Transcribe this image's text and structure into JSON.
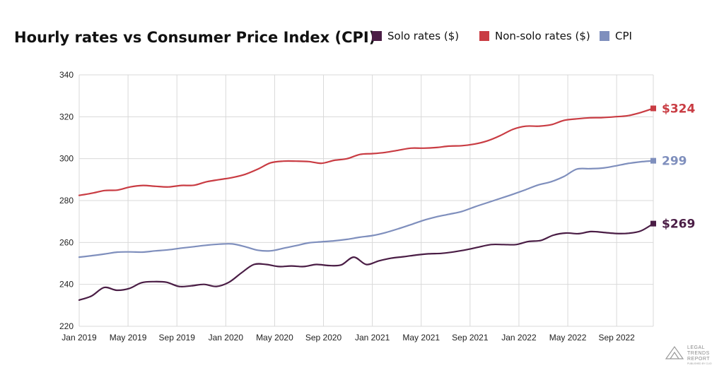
{
  "chart_data": {
    "type": "line",
    "title": "Hourly rates vs Consumer Price Index (CPI)",
    "xlabel": "",
    "ylabel": "",
    "ylim": [
      220,
      340
    ],
    "yticks": [
      220,
      240,
      260,
      280,
      300,
      320,
      340
    ],
    "x_tick_labels": [
      "Jan 2019",
      "May 2019",
      "Sep 2019",
      "Jan 2020",
      "May 2020",
      "Sep 2020",
      "Jan 2021",
      "May 2021",
      "Sep 2021",
      "Jan 2022",
      "May 2022",
      "Sep 2022"
    ],
    "months": 48,
    "grid": true,
    "legend_position": "top-right",
    "series": [
      {
        "name": "Solo rates ($)",
        "color": "#4a1d45",
        "end_label": "$269",
        "values": [
          232.5,
          234.5,
          238.5,
          237.2,
          238.0,
          240.8,
          241.3,
          241.0,
          239.0,
          239.3,
          240.0,
          239.0,
          241.0,
          245.5,
          249.5,
          249.5,
          248.5,
          248.8,
          248.5,
          249.5,
          249.0,
          249.3,
          253.0,
          249.5,
          251.2,
          252.5,
          253.2,
          254.0,
          254.6,
          254.8,
          255.5,
          256.5,
          257.8,
          259.0,
          259.0,
          259.0,
          260.5,
          261.0,
          263.5,
          264.5,
          264.2,
          265.2,
          264.8,
          264.3,
          264.4,
          265.5,
          269.0
        ]
      },
      {
        "name": "Non-solo rates ($)",
        "color": "#c93c43",
        "end_label": "$324",
        "values": [
          282.5,
          283.5,
          284.8,
          285.0,
          286.5,
          287.2,
          286.8,
          286.5,
          287.2,
          287.3,
          289.0,
          290.0,
          291.0,
          292.5,
          295.0,
          298.0,
          298.8,
          298.8,
          298.6,
          297.8,
          299.2,
          300.0,
          302.0,
          302.4,
          303.0,
          304.0,
          305.0,
          305.0,
          305.3,
          306.0,
          306.2,
          307.0,
          308.5,
          311.0,
          314.0,
          315.5,
          315.5,
          316.2,
          318.3,
          319.0,
          319.5,
          319.6,
          320.0,
          320.5,
          322.0,
          324.0
        ]
      },
      {
        "name": "CPI",
        "color": "#7f8fbd",
        "end_label": "299",
        "values": [
          253.0,
          253.7,
          254.5,
          255.4,
          255.5,
          255.4,
          256.0,
          256.5,
          257.3,
          258.0,
          258.7,
          259.2,
          259.3,
          258.0,
          256.3,
          256.0,
          257.2,
          258.5,
          259.8,
          260.3,
          260.8,
          261.5,
          262.5,
          263.3,
          264.7,
          266.5,
          268.5,
          270.6,
          272.2,
          273.5,
          274.8,
          277.0,
          279.0,
          281.0,
          283.0,
          285.2,
          287.5,
          289.0,
          291.5,
          295.0,
          295.2,
          295.5,
          296.5,
          297.7,
          298.5,
          299.0
        ]
      }
    ]
  },
  "branding": {
    "logo_line1": "LEGAL",
    "logo_line2": "TRENDS",
    "logo_line3": "REPORT",
    "logo_subtext": "PUBLISHED BY CLIO"
  }
}
